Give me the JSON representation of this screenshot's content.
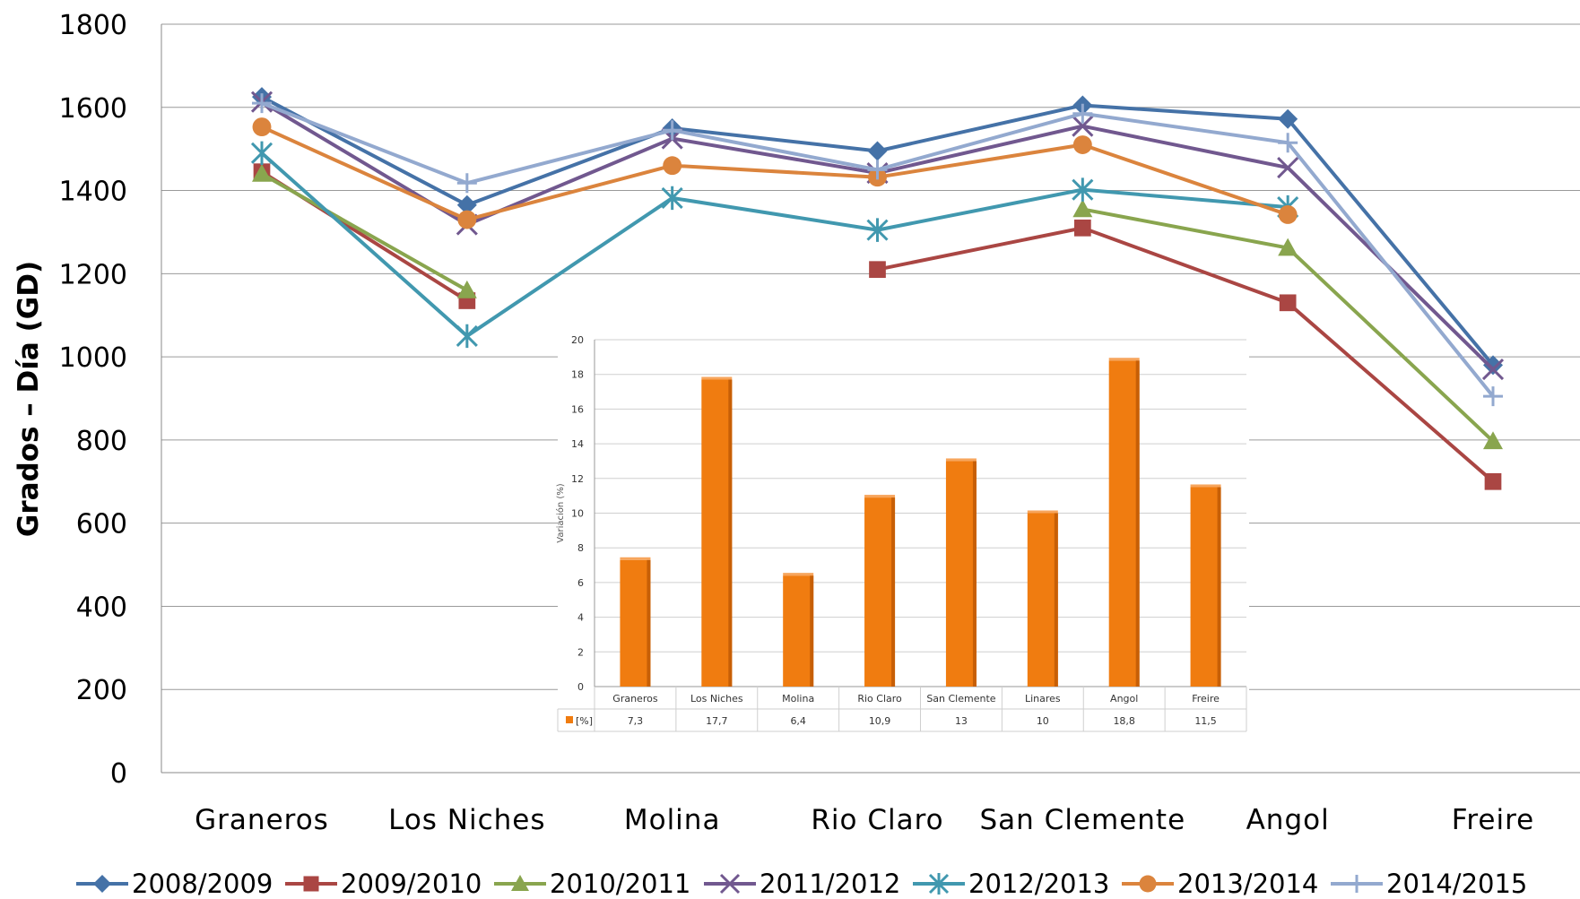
{
  "chart_data": [
    {
      "type": "line",
      "title": "",
      "xlabel": "",
      "ylabel": "Grados – Día (GD)",
      "ylim": [
        0,
        1800
      ],
      "yticks": [
        0,
        200,
        400,
        600,
        800,
        1000,
        1200,
        1400,
        1600,
        1800
      ],
      "grid": true,
      "legend_position": "bottom",
      "categories": [
        "Graneros",
        "Los Niches",
        "Molina",
        "Rio Claro",
        "San Clemente",
        "Angol",
        "Freire"
      ],
      "series": [
        {
          "name": "2008/2009",
          "color": "#4572A7",
          "marker": "diamond",
          "values": [
            1625,
            1365,
            1550,
            1495,
            1605,
            1572,
            980
          ]
        },
        {
          "name": "2009/2010",
          "color": "#AA4643",
          "marker": "square",
          "values": [
            1445,
            1135,
            null,
            1210,
            1310,
            1130,
            700
          ]
        },
        {
          "name": "2010/2011",
          "color": "#89A54E",
          "marker": "triangle",
          "values": [
            1440,
            1160,
            null,
            null,
            1355,
            1262,
            797
          ]
        },
        {
          "name": "2011/2012",
          "color": "#71588F",
          "marker": "x",
          "values": [
            1613,
            1318,
            1525,
            1442,
            1555,
            1455,
            970
          ]
        },
        {
          "name": "2012/2013",
          "color": "#4198AF",
          "marker": "asterisk",
          "values": [
            1490,
            1050,
            1382,
            1305,
            1402,
            1360,
            null
          ]
        },
        {
          "name": "2013/2014",
          "color": "#DB843D",
          "marker": "circle",
          "values": [
            1553,
            1330,
            1460,
            1432,
            1510,
            1342,
            null
          ]
        },
        {
          "name": "2014/2015",
          "color": "#93A9CF",
          "marker": "plus",
          "values": [
            1610,
            1418,
            1545,
            1450,
            1585,
            1515,
            905
          ]
        }
      ]
    },
    {
      "type": "bar",
      "title": "",
      "xlabel": "",
      "ylabel": "Variación (%)",
      "ylim": [
        0,
        20
      ],
      "yticks": [
        0,
        2,
        4,
        6,
        8,
        10,
        12,
        14,
        16,
        18,
        20
      ],
      "grid": true,
      "color": "#F07C10",
      "categories": [
        "Graneros",
        "Los Niches",
        "Molina",
        "Rio Claro",
        "San Clemente",
        "Linares",
        "Angol",
        "Freire"
      ],
      "series": [
        {
          "name": "[%]",
          "values": [
            7.3,
            17.7,
            6.4,
            10.9,
            13,
            10,
            18.8,
            11.5
          ]
        }
      ],
      "value_labels": [
        "7,3",
        "17,7",
        "6,4",
        "10,9",
        "13",
        "10",
        "18,8",
        "11,5"
      ]
    }
  ]
}
